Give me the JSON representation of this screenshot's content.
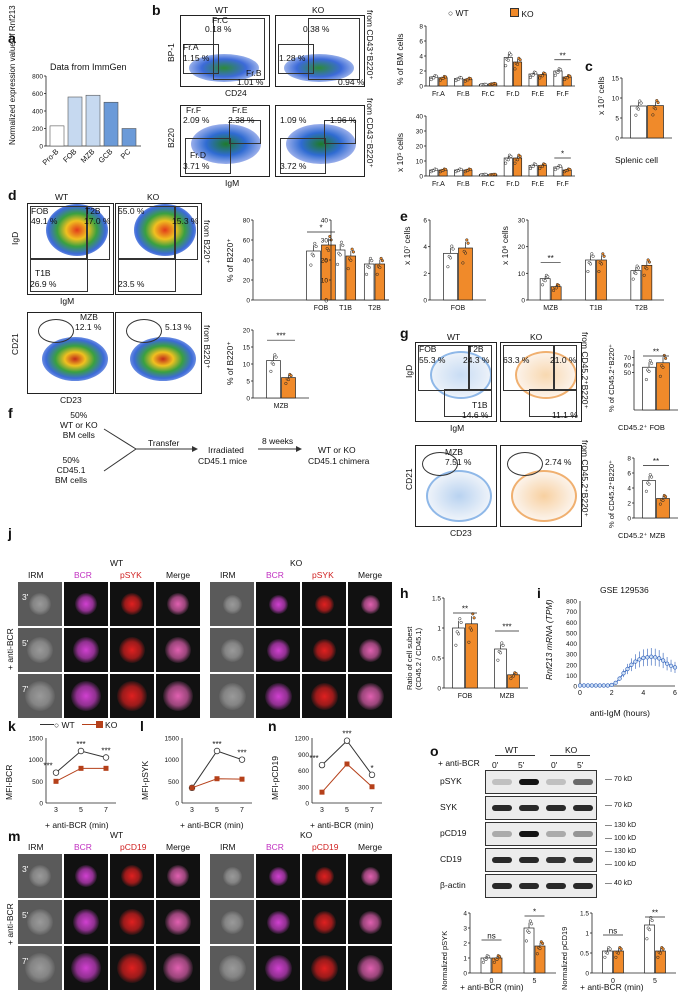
{
  "panel_labels": {
    "a": "a",
    "b": "b",
    "c": "c",
    "d": "d",
    "e": "e",
    "f": "f",
    "g": "g",
    "h": "h",
    "i": "i",
    "j": "j",
    "k": "k",
    "l": "l",
    "m": "m",
    "n": "n",
    "o": "o"
  },
  "wt": "WT",
  "ko": "KO",
  "colors": {
    "wt": "#ffffff",
    "ko": "#f08a2a",
    "a_bar": "#c6d9f0",
    "a_bar_dark": "#6b9ad8",
    "line_ko": "#b5401a",
    "blue": "#2a5cb8"
  },
  "panel_a": {
    "title": "Data from ImmGen",
    "ylabel": "Normalized expression value of Rnf213"
  },
  "panel_b": {
    "gate_top": {
      "x": "CD24",
      "y": "BP-1",
      "side": "from CD43⁺B220⁺",
      "wt": {
        "frc": "Fr.C",
        "frc_pct": "0.18 %",
        "fra": "Fr.A",
        "fra_pct": "1.15 %",
        "frb": "Fr.B",
        "frb_pct": "1.01 %"
      },
      "ko": {
        "frc_pct": "0.38 %",
        "fra_pct": "1.28 %",
        "frb_pct": "0.94 %"
      }
    },
    "gate_bottom": {
      "x": "IgM",
      "y": "B220",
      "side": "from CD43⁻B220⁺",
      "wt": {
        "frf": "Fr.F",
        "frf_pct": "2.09 %",
        "fre": "Fr.E",
        "fre_pct": "2.38 %",
        "frd": "Fr.D",
        "frd_pct": "3.71 %"
      },
      "ko": {
        "frf_pct": "1.09 %",
        "fre_pct": "1.96 %",
        "frd_pct": "3.72 %"
      }
    },
    "ylabel_top": "% of BM cells",
    "ylabel_bottom": "x 10⁵ cells",
    "sig_top": "**",
    "sig_bottom": "*"
  },
  "panel_c": {
    "ylabel": "x 10⁷ cells",
    "xlabel": "Splenic cell"
  },
  "panel_d": {
    "top": {
      "x": "IgM",
      "y": "IgD",
      "side": "from B220⁺",
      "wt": {
        "fob": "FOB",
        "fob_pct": "49.1 %",
        "t2b": "T2B",
        "t2b_pct": "17.0 %",
        "t1b": "T1B",
        "t1b_pct": "26.9 %"
      },
      "ko": {
        "fob_pct": "55.0 %",
        "t2b_pct": "15.3 %",
        "t1b_pct": "23.5 %"
      }
    },
    "bottom": {
      "x": "CD23",
      "y": "CD21",
      "side": "from B220⁺",
      "wt": {
        "mzb": "MZB",
        "mzb_pct": "12.1 %"
      },
      "ko": {
        "mzb_pct": "5.13 %"
      }
    },
    "ylabel": "% of B220⁺",
    "sig_fob": "*",
    "sig_mzb": "***"
  },
  "panel_e": {
    "ylabel1": "x 10⁷ cells",
    "ylabel2": "x 10⁶ cells",
    "sig": "**"
  },
  "panel_f": {
    "wt_line1": "50%",
    "wt_line2": "WT or KO",
    "wt_line3": "BM cells",
    "cd_line1": "50%",
    "cd_line2": "CD45.1",
    "cd_line3": "BM cells",
    "transfer": "Transfer",
    "irr1": "Irradiated",
    "irr2": "CD45.1 mice",
    "weeks": "8 weeks",
    "res1": "WT or KO",
    "res2": "CD45.1 chimera"
  },
  "panel_g": {
    "top": {
      "x": "IgM",
      "y": "IgD",
      "side": "from CD45.2⁺B220⁺",
      "wt": {
        "fob": "FOB",
        "fob_pct": "55.3 %",
        "t2b": "T2B",
        "t2b_pct": "24.3 %",
        "t1b": "T1B",
        "t1b_pct": "14.6 %"
      },
      "ko": {
        "fob_pct": "63.3 %",
        "t2b_pct": "21.0 %",
        "t1b_pct": "11.1 %"
      }
    },
    "bottom": {
      "x": "CD23",
      "y": "CD21",
      "side": "from CD45.2⁺B220⁺",
      "wt": {
        "mzb": "MZB",
        "mzb_pct": "7.51 %"
      },
      "ko": {
        "mzb_pct": "2.74 %"
      }
    },
    "ylabel_top": "% of CD45.2⁺B220⁺",
    "ylabel_bottom": "% of CD45.2⁺B220⁺",
    "x_top": "CD45.2⁺ FOB",
    "x_bottom": "CD45.2⁺ MZB",
    "sig": "**"
  },
  "panel_h": {
    "ylabel1": "Ratio of cell subest",
    "ylabel2": "(CD45.2 / CD45.1)",
    "sig1": "**",
    "sig2": "***"
  },
  "panel_i": {
    "title": "GSE 129536",
    "ylabel": "Rnf213 mRNA (TPM)",
    "xlabel": "anti-IgM (hours)"
  },
  "panel_j": {
    "cols": [
      "IRM",
      "BCR",
      "pSYK",
      "Merge"
    ],
    "rows": [
      "3'",
      "5'",
      "7'"
    ],
    "side": "+ anti-BCR"
  },
  "panel_k": {
    "ylabel": "MFI-BCR",
    "xlabel": "+ anti-BCR (min)",
    "sig": [
      "***",
      "***",
      "***"
    ]
  },
  "panel_l": {
    "ylabel": "MFI-pSYK",
    "xlabel": "+ anti-BCR (min)",
    "sig": [
      "***",
      "***"
    ]
  },
  "panel_n": {
    "ylabel": "MFI-pCD19",
    "xlabel": "+ anti-BCR (min)",
    "sig": [
      "***",
      "***",
      "*"
    ]
  },
  "panel_m": {
    "cols": [
      "IRM",
      "BCR",
      "pCD19",
      "Merge"
    ],
    "rows": [
      "3'",
      "5'",
      "7'"
    ],
    "side": "+ anti-BCR"
  },
  "panel_o": {
    "treat": "+ anti-BCR",
    "times": [
      "0'",
      "5'",
      "0'",
      "5'"
    ],
    "rows": [
      {
        "name": "pSYK",
        "kd": "70 kD"
      },
      {
        "name": "SYK",
        "kd": "70 kD"
      },
      {
        "name": "pCD19",
        "kd": "130 kD",
        "kd2": "100 kD"
      },
      {
        "name": "CD19",
        "kd": "130 kD",
        "kd2": "100 kD"
      },
      {
        "name": "β-actin",
        "kd": "40 kD"
      }
    ],
    "ylabel1": "Normalized pSYK",
    "ylabel2": "Normalized pCD19",
    "xlabel": "+ anti-BCR (min)",
    "sig1": [
      "ns",
      "*"
    ],
    "sig2": [
      "ns",
      "**"
    ]
  },
  "chart_data": [
    {
      "type": "bar",
      "id": "a",
      "title": "Data from ImmGen",
      "ylabel": "Normalized expression value of Rnf213",
      "categories": [
        "Pro-B",
        "FOB",
        "MZB",
        "GCB",
        "PC"
      ],
      "values": [
        230,
        560,
        580,
        500,
        200
      ],
      "ylim": [
        0,
        800
      ],
      "yticks": [
        0,
        200,
        400,
        600,
        800
      ]
    },
    {
      "type": "bar",
      "id": "b_top",
      "ylabel": "% of BM cells",
      "categories": [
        "Fr.A",
        "Fr.B",
        "Fr.C",
        "Fr.D",
        "Fr.E",
        "Fr.F"
      ],
      "series": [
        {
          "name": "WT",
          "values": [
            1.2,
            1.0,
            0.2,
            3.8,
            1.6,
            2.0
          ]
        },
        {
          "name": "KO",
          "values": [
            1.1,
            0.9,
            0.3,
            3.2,
            1.5,
            1.2
          ]
        }
      ],
      "ylim": [
        0,
        8
      ]
    },
    {
      "type": "bar",
      "id": "b_bottom",
      "ylabel": "x 10⁵ cells",
      "categories": [
        "Fr.A",
        "Fr.B",
        "Fr.C",
        "Fr.D",
        "Fr.E",
        "Fr.F"
      ],
      "series": [
        {
          "name": "WT",
          "values": [
            4,
            4,
            1,
            12,
            7,
            6
          ]
        },
        {
          "name": "KO",
          "values": [
            4,
            4,
            1,
            12,
            7,
            4
          ]
        }
      ],
      "ylim": [
        0,
        40
      ]
    },
    {
      "type": "bar",
      "id": "c",
      "ylabel": "x 10⁷ cells",
      "categories": [
        "Splenic cell"
      ],
      "series": [
        {
          "name": "WT",
          "values": [
            8.0
          ]
        },
        {
          "name": "KO",
          "values": [
            8.1
          ]
        }
      ],
      "ylim": [
        0,
        15
      ]
    },
    {
      "type": "bar",
      "id": "d_top1",
      "ylabel": "% of B220⁺",
      "categories": [
        "FOB"
      ],
      "series": [
        {
          "name": "WT",
          "values": [
            49
          ]
        },
        {
          "name": "KO",
          "values": [
            55
          ]
        }
      ],
      "ylim": [
        0,
        80
      ]
    },
    {
      "type": "bar",
      "id": "d_top2",
      "categories": [
        "T1B",
        "T2B"
      ],
      "series": [
        {
          "name": "WT",
          "values": [
            25,
            18
          ]
        },
        {
          "name": "KO",
          "values": [
            22,
            18
          ]
        }
      ],
      "ylim": [
        0,
        40
      ]
    },
    {
      "type": "bar",
      "id": "d_bottom",
      "ylabel": "% of B220⁺",
      "categories": [
        "MZB"
      ],
      "series": [
        {
          "name": "WT",
          "values": [
            11
          ]
        },
        {
          "name": "KO",
          "values": [
            6
          ]
        }
      ],
      "ylim": [
        0,
        20
      ]
    },
    {
      "type": "bar",
      "id": "e1",
      "ylabel": "x 10⁷ cells",
      "categories": [
        "FOB"
      ],
      "series": [
        {
          "name": "WT",
          "values": [
            3.5
          ]
        },
        {
          "name": "KO",
          "values": [
            3.9
          ]
        }
      ],
      "ylim": [
        0,
        6
      ]
    },
    {
      "type": "bar",
      "id": "e2",
      "ylabel": "x 10⁶ cells",
      "categories": [
        "MZB",
        "T1B",
        "T2B"
      ],
      "series": [
        {
          "name": "WT",
          "values": [
            8,
            15,
            11
          ]
        },
        {
          "name": "KO",
          "values": [
            5,
            15,
            13
          ]
        }
      ],
      "ylim": [
        0,
        30
      ]
    },
    {
      "type": "bar",
      "id": "g_top",
      "ylabel": "% of CD45.2⁺B220⁺",
      "categories": [
        "CD45.2⁺ FOB"
      ],
      "series": [
        {
          "name": "WT",
          "values": [
            57
          ]
        },
        {
          "name": "KO",
          "values": [
            63
          ]
        }
      ],
      "ylim": [
        0,
        80
      ]
    },
    {
      "type": "bar",
      "id": "g_bottom",
      "ylabel": "% of CD45.2⁺B220⁺",
      "categories": [
        "CD45.2⁺ MZB"
      ],
      "series": [
        {
          "name": "WT",
          "values": [
            5.0
          ]
        },
        {
          "name": "KO",
          "values": [
            2.6
          ]
        }
      ],
      "ylim": [
        0,
        8
      ]
    },
    {
      "type": "bar",
      "id": "h",
      "ylabel": "Ratio of cell subest (CD45.2 / CD45.1)",
      "categories": [
        "FOB",
        "MZB"
      ],
      "series": [
        {
          "name": "WT",
          "values": [
            1.0,
            0.65
          ]
        },
        {
          "name": "KO",
          "values": [
            1.07,
            0.22
          ]
        }
      ],
      "ylim": [
        0,
        1.5
      ]
    },
    {
      "type": "line",
      "id": "i",
      "title": "GSE 129536",
      "ylabel": "Rnf213 mRNA (TPM)",
      "xlabel": "anti-IgM (hours)",
      "x": [
        0,
        0.25,
        0.5,
        0.75,
        1,
        1.25,
        1.5,
        1.75,
        2,
        2.25,
        2.5,
        2.75,
        3,
        3.25,
        3.5,
        3.75,
        4,
        4.25,
        4.5,
        4.75,
        5,
        5.25,
        5.5,
        5.75,
        6
      ],
      "y": [
        5,
        5,
        5,
        5,
        5,
        5,
        5,
        5,
        10,
        30,
        70,
        120,
        160,
        200,
        230,
        250,
        265,
        270,
        275,
        270,
        260,
        240,
        210,
        190,
        175
      ],
      "xlim": [
        0,
        6
      ],
      "ylim": [
        0,
        800
      ]
    },
    {
      "type": "line",
      "id": "k",
      "ylabel": "MFI-BCR",
      "xlabel": "+ anti-BCR (min)",
      "x": [
        3,
        5,
        7
      ],
      "series": [
        {
          "name": "WT",
          "values": [
            700,
            1200,
            1050
          ]
        },
        {
          "name": "KO",
          "values": [
            500,
            800,
            800
          ]
        }
      ],
      "ylim": [
        0,
        1500
      ]
    },
    {
      "type": "line",
      "id": "l",
      "ylabel": "MFI-pSYK",
      "xlabel": "+ anti-BCR (min)",
      "x": [
        3,
        5,
        7
      ],
      "series": [
        {
          "name": "WT",
          "values": [
            350,
            1200,
            1000
          ]
        },
        {
          "name": "KO",
          "values": [
            350,
            560,
            550
          ]
        }
      ],
      "ylim": [
        0,
        1500
      ]
    },
    {
      "type": "line",
      "id": "n",
      "ylabel": "MFI-pCD19",
      "xlabel": "+ anti-BCR (min)",
      "x": [
        3,
        5,
        7
      ],
      "series": [
        {
          "name": "WT",
          "values": [
            700,
            1150,
            520
          ]
        },
        {
          "name": "KO",
          "values": [
            200,
            720,
            300
          ]
        }
      ],
      "ylim": [
        0,
        1200
      ]
    },
    {
      "type": "bar",
      "id": "o1",
      "ylabel": "Normalized pSYK",
      "xlabel": "+ anti-BCR (min)",
      "categories": [
        "0",
        "5"
      ],
      "series": [
        {
          "name": "WT",
          "values": [
            1.0,
            3.0
          ]
        },
        {
          "name": "KO",
          "values": [
            1.0,
            1.8
          ]
        }
      ],
      "ylim": [
        0,
        4
      ]
    },
    {
      "type": "bar",
      "id": "o2",
      "ylabel": "Normalized pCD19",
      "xlabel": "+ anti-BCR (min)",
      "categories": [
        "0",
        "5"
      ],
      "series": [
        {
          "name": "WT",
          "values": [
            0.55,
            1.2
          ]
        },
        {
          "name": "KO",
          "values": [
            0.55,
            0.55
          ]
        }
      ],
      "ylim": [
        0,
        1.5
      ]
    }
  ]
}
